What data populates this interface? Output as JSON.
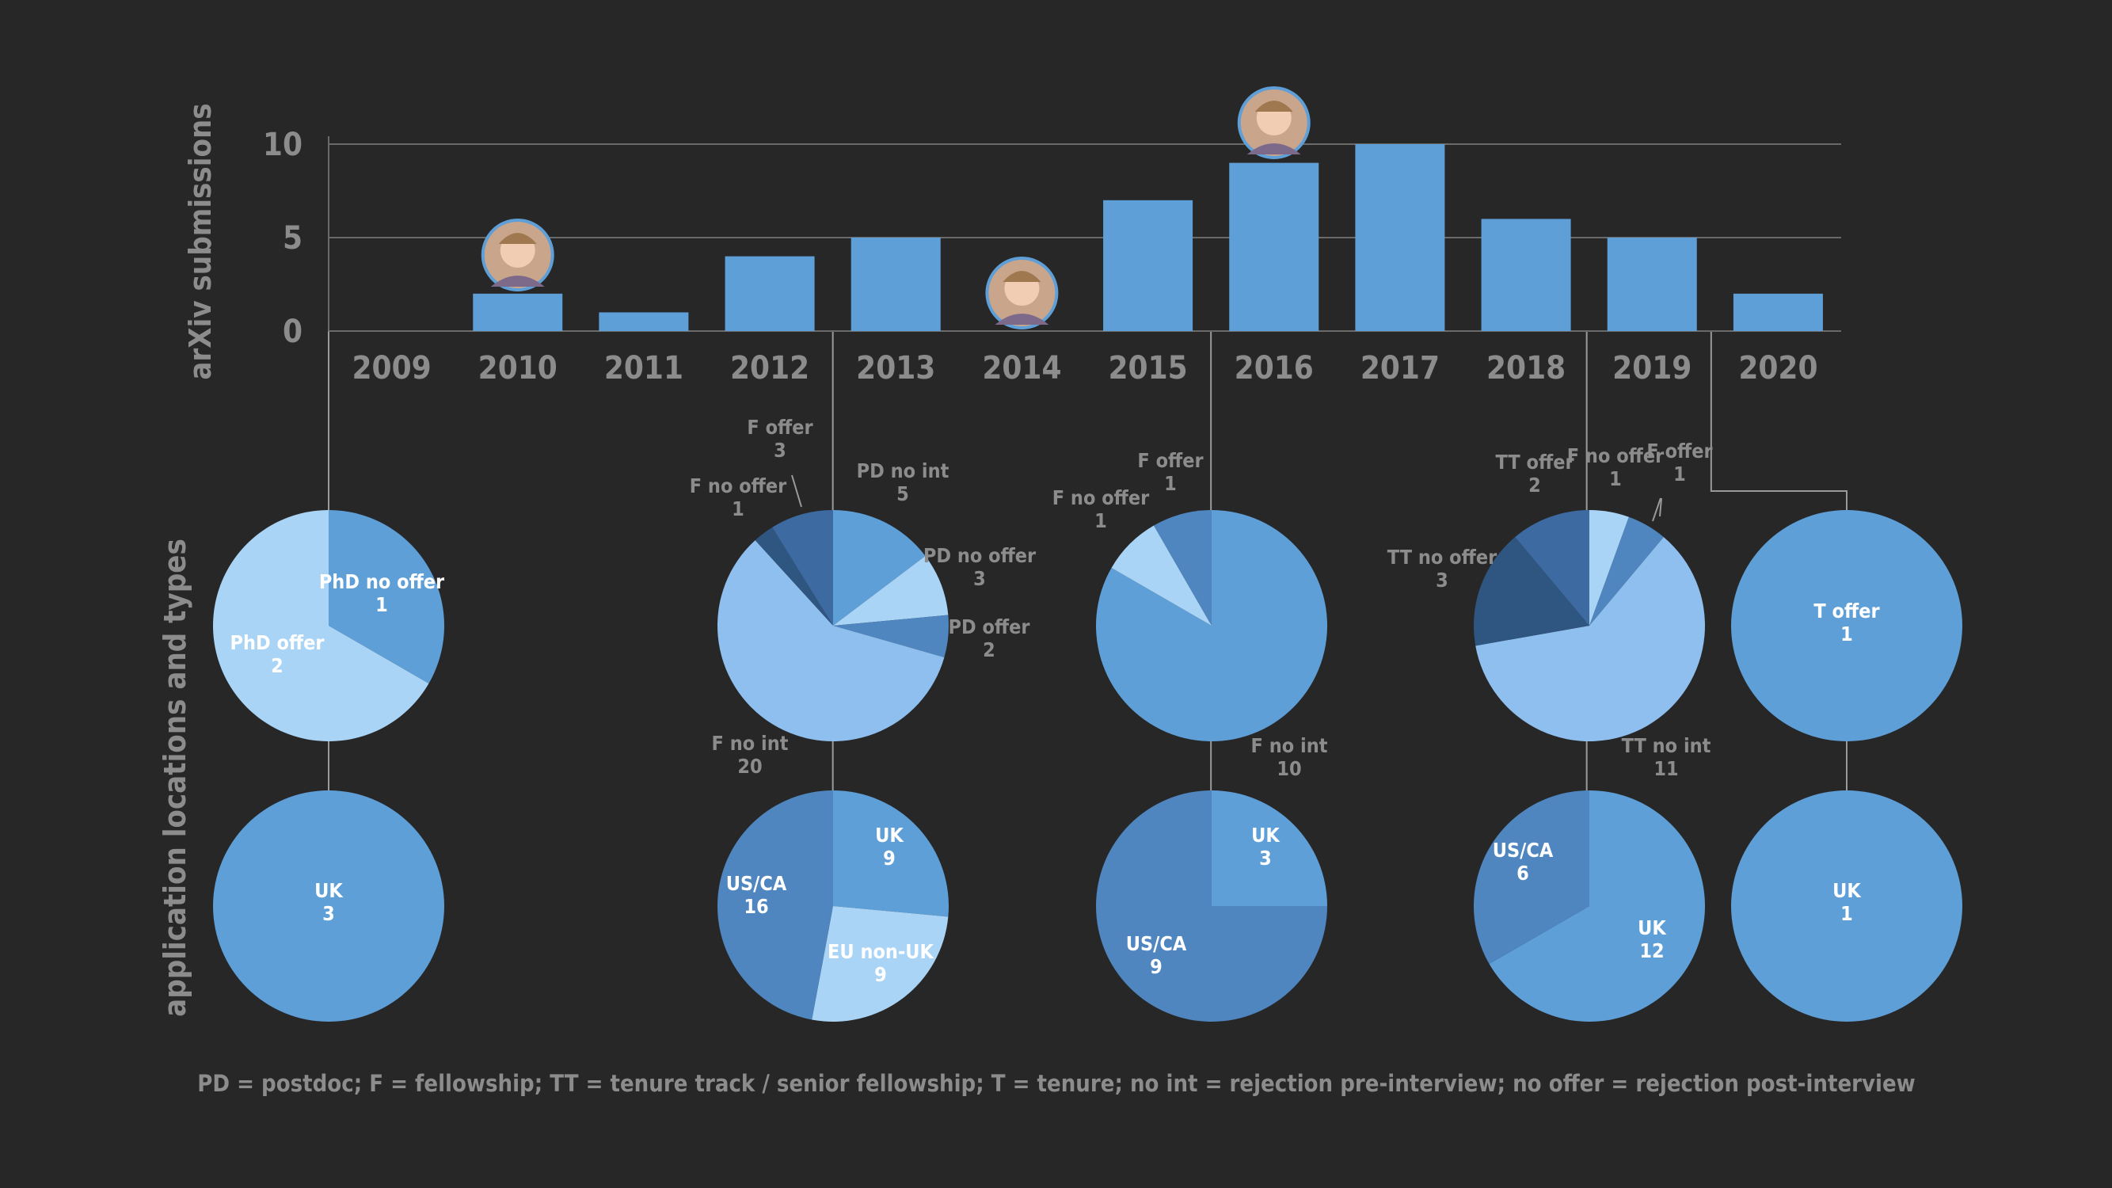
{
  "colors": {
    "background": "#272727",
    "bar": "#5f9fd8",
    "text_gray": "#8c8c8c",
    "grid": "#6a6a6a",
    "connector": "#9a9a9a",
    "pie_mid": "#5f9fd8",
    "pie_light": "#a9d4f6",
    "pie_lighter": "#8ebfee",
    "pie_dark": "#4f86bf",
    "pie_darker": "#3d6aa0",
    "pie_darkest": "#2f5581",
    "white": "#ffffff"
  },
  "chart_data": [
    {
      "type": "bar",
      "categories": [
        "2009",
        "2010",
        "2011",
        "2012",
        "2013",
        "2014",
        "2015",
        "2016",
        "2017",
        "2018",
        "2019",
        "2020"
      ],
      "values": [
        0,
        2,
        1,
        4,
        5,
        0,
        7,
        9,
        10,
        6,
        5,
        2
      ],
      "ylabel": "arXiv submissions",
      "ylim": [
        0,
        10.5
      ],
      "yticks": [
        "0",
        "5",
        "10"
      ],
      "grid": true,
      "photo_markers": [
        {
          "year": "2010",
          "icon": "wedding-photo-icon"
        },
        {
          "year": "2014",
          "icon": "child-face-paint-photo-icon"
        },
        {
          "year": "2016",
          "icon": "toddler-photo-icon"
        }
      ]
    },
    {
      "type": "pie",
      "group_label": "application locations and types",
      "rows": {
        "types": [
          {
            "year": "2009",
            "slices": [
              {
                "label": "PhD no offer",
                "value": 1,
                "color": "#5f9fd8",
                "label_inside": true
              },
              {
                "label": "PhD offer",
                "value": 2,
                "color": "#a9d4f6",
                "label_inside": true
              }
            ]
          },
          {
            "year": "2013",
            "slices": [
              {
                "label": "PD no int",
                "value": 5,
                "color": "#5f9fd8"
              },
              {
                "label": "PD no offer",
                "value": 3,
                "color": "#a9d4f6"
              },
              {
                "label": "PD offer",
                "value": 2,
                "color": "#4f86bf"
              },
              {
                "label": "F no int",
                "value": 20,
                "color": "#8ebfee"
              },
              {
                "label": "F no offer",
                "value": 1,
                "color": "#2f5581"
              },
              {
                "label": "F offer",
                "value": 3,
                "color": "#3d6aa0"
              }
            ]
          },
          {
            "year": "2016",
            "slices": [
              {
                "label": "F no int",
                "value": 10,
                "color": "#5f9fd8"
              },
              {
                "label": "F no offer",
                "value": 1,
                "color": "#a9d4f6"
              },
              {
                "label": "F offer",
                "value": 1,
                "color": "#4f86bf"
              }
            ]
          },
          {
            "year": "2019",
            "slices": [
              {
                "label": "F no offer",
                "value": 1,
                "color": "#a9d4f6"
              },
              {
                "label": "F offer",
                "value": 1,
                "color": "#4f86bf"
              },
              {
                "label": "TT no int",
                "value": 11,
                "color": "#8ebfee"
              },
              {
                "label": "TT no offer",
                "value": 3,
                "color": "#2f5581"
              },
              {
                "label": "TT offer",
                "value": 2,
                "color": "#3d6aa0"
              }
            ]
          },
          {
            "year": "2020",
            "slices": [
              {
                "label": "T offer",
                "value": 1,
                "color": "#5f9fd8",
                "label_inside": true
              }
            ]
          }
        ],
        "locations": [
          {
            "year": "2009",
            "slices": [
              {
                "label": "UK",
                "value": 3,
                "color": "#5f9fd8"
              }
            ]
          },
          {
            "year": "2013",
            "slices": [
              {
                "label": "UK",
                "value": 9,
                "color": "#5f9fd8"
              },
              {
                "label": "EU non-UK",
                "value": 9,
                "color": "#a9d4f6"
              },
              {
                "label": "US/CA",
                "value": 16,
                "color": "#4f86bf"
              }
            ]
          },
          {
            "year": "2016",
            "slices": [
              {
                "label": "UK",
                "value": 3,
                "color": "#5f9fd8"
              },
              {
                "label": "US/CA",
                "value": 9,
                "color": "#4f86bf"
              }
            ]
          },
          {
            "year": "2019",
            "slices": [
              {
                "label": "UK",
                "value": 12,
                "color": "#5f9fd8"
              },
              {
                "label": "US/CA",
                "value": 6,
                "color": "#4f86bf"
              }
            ]
          },
          {
            "year": "2020",
            "slices": [
              {
                "label": "UK",
                "value": 1,
                "color": "#5f9fd8"
              }
            ]
          }
        ]
      }
    }
  ],
  "footnote": "PD = postdoc; F = fellowship; TT = tenure track / senior fellowship; T = tenure; no int = rejection pre-interview; no offer = rejection post-interview"
}
